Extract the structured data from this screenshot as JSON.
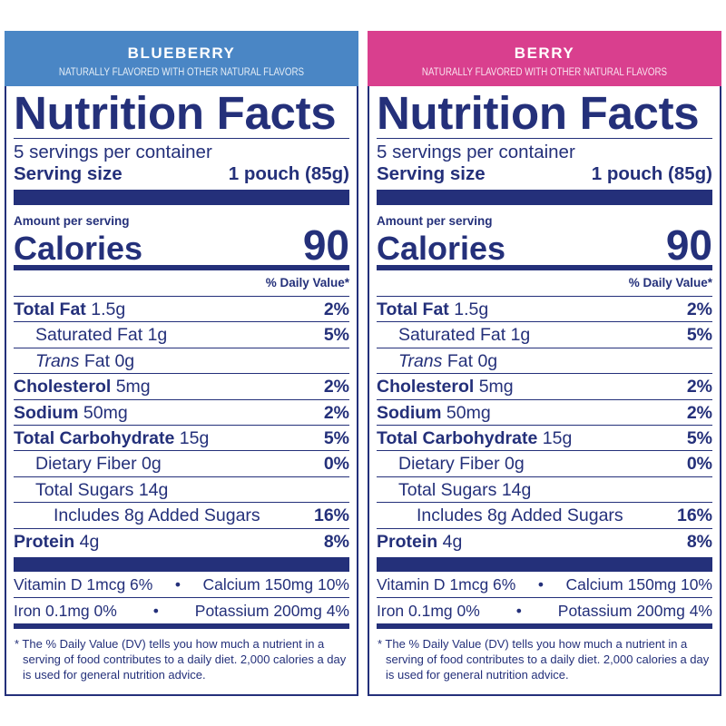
{
  "colors": {
    "navy": "#24307a",
    "blueberry_header": "#4a86c5",
    "berry_header": "#d93f8e"
  },
  "panels": [
    {
      "flavor": "BLUEBERRY",
      "subtitle": "NATURALLY FLAVORED WITH  OTHER NATURAL FLAVORS",
      "header_color": "#4a86c5"
    },
    {
      "flavor": "BERRY",
      "subtitle": "NATURALLY FLAVORED WITH  OTHER NATURAL FLAVORS",
      "header_color": "#d93f8e"
    }
  ],
  "label": {
    "title": "Nutrition Facts",
    "servings": "5 servings per container",
    "serving_size_label": "Serving size",
    "serving_size_value": "1 pouch (85g)",
    "amount_per_serving": "Amount per serving",
    "calories_label": "Calories",
    "calories_value": "90",
    "dv_header": "% Daily Value*",
    "nutrients": [
      {
        "name": "Total Fat",
        "amount": "1.5g",
        "dv": "2%",
        "bold": true,
        "indent": 0
      },
      {
        "name": "Saturated Fat",
        "amount": "1g",
        "dv": "5%",
        "bold": false,
        "indent": 1
      },
      {
        "name": "Trans",
        "name_rest": "Fat",
        "amount": "0g",
        "dv": "",
        "bold": false,
        "indent": 1,
        "italic": true
      },
      {
        "name": "Cholesterol",
        "amount": "5mg",
        "dv": "2%",
        "bold": true,
        "indent": 0
      },
      {
        "name": "Sodium",
        "amount": "50mg",
        "dv": "2%",
        "bold": true,
        "indent": 0
      },
      {
        "name": "Total Carbohydrate",
        "amount": "15g",
        "dv": "5%",
        "bold": true,
        "indent": 0
      },
      {
        "name": "Dietary Fiber",
        "amount": "0g",
        "dv": "0%",
        "bold": false,
        "indent": 1
      },
      {
        "name": "Total Sugars",
        "amount": "14g",
        "dv": "",
        "bold": false,
        "indent": 1
      },
      {
        "name": "Includes 8g Added Sugars",
        "amount": "",
        "dv": "16%",
        "bold": false,
        "indent": 2
      },
      {
        "name": "Protein",
        "amount": "4g",
        "dv": "8%",
        "bold": true,
        "indent": 0
      }
    ],
    "vitamins": [
      {
        "left": "Vitamin D 1mcg 6%",
        "right": "Calcium 150mg 10%"
      },
      {
        "left": "Iron 0.1mg 0%",
        "right": "Potassium 200mg 4%"
      }
    ],
    "bullet": "•",
    "footnote": "* The % Daily Value (DV) tells you how much a nutrient in a serving of food contributes to a daily diet. 2,000 calories a day is used for general nutrition advice."
  }
}
